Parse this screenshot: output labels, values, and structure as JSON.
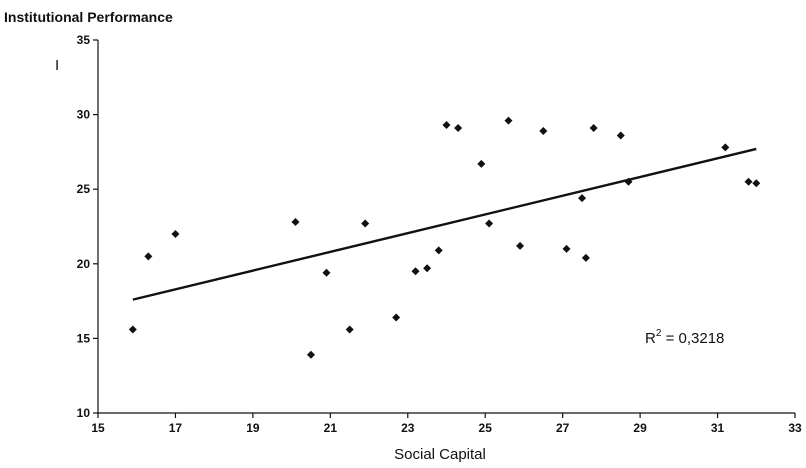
{
  "chart_data": {
    "type": "scatter",
    "title": "Institutional Performance",
    "ylabel_mark": "I",
    "xlabel": "Social Capital",
    "xlim": [
      15,
      33
    ],
    "ylim": [
      10,
      35
    ],
    "xticks": [
      15,
      17,
      19,
      21,
      23,
      25,
      27,
      29,
      31,
      33
    ],
    "yticks": [
      10,
      15,
      20,
      25,
      30,
      35
    ],
    "grid": false,
    "marker": "diamond",
    "points": [
      {
        "x": 15.9,
        "y": 15.6
      },
      {
        "x": 16.3,
        "y": 20.5
      },
      {
        "x": 17.0,
        "y": 22.0
      },
      {
        "x": 20.1,
        "y": 22.8
      },
      {
        "x": 20.5,
        "y": 13.9
      },
      {
        "x": 20.9,
        "y": 19.4
      },
      {
        "x": 21.5,
        "y": 15.6
      },
      {
        "x": 21.9,
        "y": 22.7
      },
      {
        "x": 22.7,
        "y": 16.4
      },
      {
        "x": 23.2,
        "y": 19.5
      },
      {
        "x": 23.5,
        "y": 19.7
      },
      {
        "x": 23.8,
        "y": 20.9
      },
      {
        "x": 24.0,
        "y": 29.3
      },
      {
        "x": 24.3,
        "y": 29.1
      },
      {
        "x": 24.9,
        "y": 26.7
      },
      {
        "x": 25.1,
        "y": 22.7
      },
      {
        "x": 25.6,
        "y": 29.6
      },
      {
        "x": 25.9,
        "y": 21.2
      },
      {
        "x": 26.5,
        "y": 28.9
      },
      {
        "x": 27.1,
        "y": 21.0
      },
      {
        "x": 27.5,
        "y": 24.4
      },
      {
        "x": 27.6,
        "y": 20.4
      },
      {
        "x": 27.8,
        "y": 29.1
      },
      {
        "x": 28.5,
        "y": 28.6
      },
      {
        "x": 28.7,
        "y": 25.5
      },
      {
        "x": 31.2,
        "y": 27.8
      },
      {
        "x": 31.8,
        "y": 25.5
      },
      {
        "x": 32.0,
        "y": 25.4
      }
    ],
    "trendline": {
      "type": "linear",
      "x": [
        15.9,
        32.0
      ],
      "y": [
        17.6,
        27.7
      ]
    },
    "annotation": {
      "base": "R",
      "sup": "2",
      "rest": " = 0,3218"
    }
  }
}
